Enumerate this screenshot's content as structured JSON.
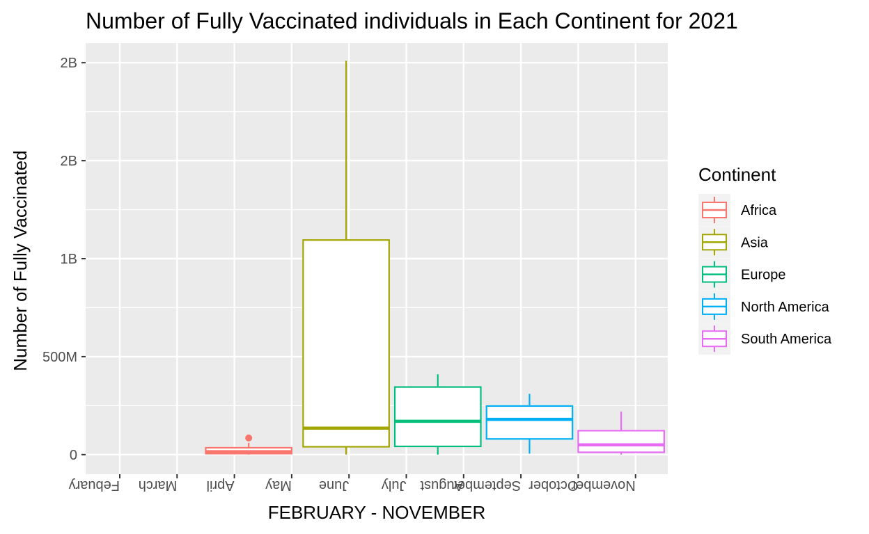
{
  "chart_data": {
    "type": "boxplot",
    "title": "Number of Fully Vaccinated individuals in Each Continent for 2021",
    "xlabel": "FEBRUARY - NOVEMBER",
    "ylabel": "Number of Fully Vaccinated",
    "x_tick_labels": [
      "Febuary",
      "March",
      "April",
      "May",
      "June",
      "July",
      "August",
      "September",
      "October",
      "November"
    ],
    "x_tick_labels_rotated_180": true,
    "y_ticks": [
      {
        "value": 0,
        "label": "0"
      },
      {
        "value": 500000000,
        "label": "500M"
      },
      {
        "value": 1000000000,
        "label": "1B"
      },
      {
        "value": 1500000000,
        "label": "2B"
      },
      {
        "value": 2000000000,
        "label": "2B"
      }
    ],
    "ylim": [
      -100000000,
      2100000000
    ],
    "grid": true,
    "legend": {
      "title": "Continent",
      "placement": "right"
    },
    "series": [
      {
        "name": "Africa",
        "color": "#F8766D",
        "x_range": [
          1.5,
          3.0
        ],
        "min": 0,
        "q1": 5000000,
        "median": 15000000,
        "q3": 35000000,
        "max": 60000000,
        "outliers": [
          85000000
        ]
      },
      {
        "name": "Asia",
        "color": "#A3A500",
        "x_range": [
          3.2,
          4.7
        ],
        "min": 0,
        "q1": 40000000,
        "median": 135000000,
        "q3": 1095000000,
        "max": 2010000000,
        "outliers": []
      },
      {
        "name": "Europe",
        "color": "#00BF7D",
        "x_range": [
          4.8,
          6.3
        ],
        "min": 0,
        "q1": 42000000,
        "median": 170000000,
        "q3": 345000000,
        "max": 410000000,
        "outliers": []
      },
      {
        "name": "North America",
        "color": "#00B0F6",
        "x_range": [
          6.4,
          7.9
        ],
        "min": 5000000,
        "q1": 80000000,
        "median": 180000000,
        "q3": 248000000,
        "max": 310000000,
        "outliers": []
      },
      {
        "name": "South America",
        "color": "#E76BF3",
        "x_range": [
          8.0,
          9.5
        ],
        "min": 0,
        "q1": 12000000,
        "median": 50000000,
        "q3": 122000000,
        "max": 220000000,
        "outliers": []
      }
    ]
  }
}
